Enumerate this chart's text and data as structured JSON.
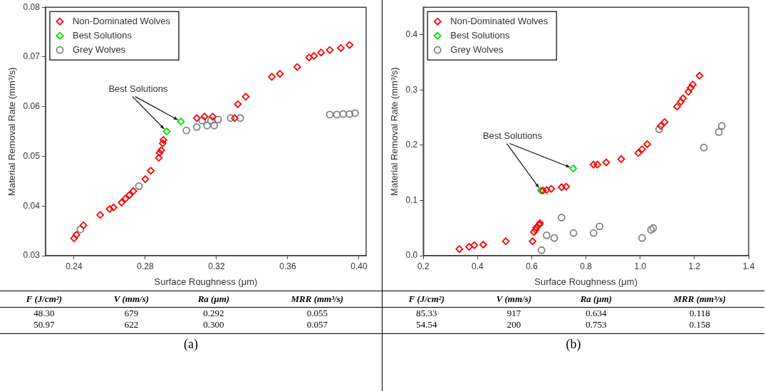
{
  "chart_data": [
    {
      "type": "scatter",
      "xlabel": "Surface Roughness (μm)",
      "ylabel": "Material Removal Rate (mm³/s)",
      "xlim": [
        0.224,
        0.404
      ],
      "ylim": [
        0.03,
        0.08
      ],
      "xticks": [
        0.24,
        0.28,
        0.32,
        0.36,
        {
          "value": 0.4,
          "label": "0.40"
        }
      ],
      "yticks": [
        0.03,
        0.04,
        0.05,
        0.06,
        0.07,
        0.08
      ],
      "grid": false,
      "legend": "top left",
      "series": [
        {
          "name": "Non-Dominated Wolves",
          "color": "#ff0000",
          "marker": "diamond",
          "x": [
            0.24,
            0.2413,
            0.2453,
            0.2547,
            0.26,
            0.2622,
            0.2667,
            0.2689,
            0.2711,
            0.2733,
            0.28,
            0.2831,
            0.2876,
            0.288,
            0.2889,
            0.2898,
            0.2902,
            0.3089,
            0.3133,
            0.3178,
            0.3302,
            0.332,
            0.3364,
            0.3511,
            0.3556,
            0.3653,
            0.372,
            0.3747,
            0.3787,
            0.3836,
            0.3898,
            0.3947
          ],
          "values": [
            0.0335,
            0.0342,
            0.0361,
            0.0382,
            0.0394,
            0.0397,
            0.0407,
            0.0415,
            0.0422,
            0.043,
            0.0454,
            0.0471,
            0.0497,
            0.0507,
            0.0512,
            0.0526,
            0.0533,
            0.0577,
            0.058,
            0.058,
            0.0577,
            0.0605,
            0.062,
            0.066,
            0.0666,
            0.068,
            0.0699,
            0.0702,
            0.0709,
            0.0714,
            0.0718,
            0.0724
          ]
        },
        {
          "name": "Best Solutions",
          "color": "#00dd00",
          "marker": "diamond",
          "x": [
            0.292,
            0.3
          ],
          "values": [
            0.055,
            0.057
          ]
        },
        {
          "name": "Grey Wolves",
          "color": "#808080",
          "marker": "circle",
          "x": [
            0.2436,
            0.2764,
            0.3031,
            0.3089,
            0.312,
            0.3147,
            0.3169,
            0.3187,
            0.3209,
            0.328,
            0.3333,
            0.3836,
            0.3876,
            0.3911,
            0.3947,
            0.3978
          ],
          "values": [
            0.0353,
            0.044,
            0.0552,
            0.0559,
            0.0572,
            0.0562,
            0.0572,
            0.0562,
            0.0574,
            0.0577,
            0.0577,
            0.0584,
            0.0584,
            0.0585,
            0.0585,
            0.0587
          ]
        }
      ],
      "annotations": [
        {
          "text": "Best Solutions",
          "x": 0.292,
          "y": 0.055
        },
        "F (J/cm²)",
        "V (mm/s)",
        "Ra (μm)",
        "MRR (mm³/s)",
        "48.30",
        "679",
        "0.292",
        "0.055",
        "50.97",
        "622",
        "0.300",
        "0.057",
        "(a)"
      ]
    },
    {
      "type": "scatter",
      "xlabel": "Surface Roughness (μm)",
      "ylabel": "Material Removal Rate (mm³/s)",
      "xlim": [
        0.2,
        1.4
      ],
      "ylim": [
        0,
        0.45
      ],
      "xticks": [
        0.2,
        0.4,
        0.6,
        0.8,
        {
          "value": 1,
          "label": "1.0"
        },
        1.2,
        1.4
      ],
      "yticks": [
        {
          "value": 0,
          "label": "0.0"
        },
        0.1,
        0.2,
        0.3,
        0.4
      ],
      "grid": false,
      "legend": "top left",
      "series": [
        {
          "name": "Non-Dominated Wolves",
          "color": "#ff0000",
          "marker": "diamond",
          "x": [
            0.333,
            0.369,
            0.388,
            0.421,
            0.504,
            0.603,
            0.608,
            0.614,
            0.617,
            0.628,
            0.63,
            0.641,
            0.655,
            0.672,
            0.71,
            0.727,
            0.828,
            0.842,
            0.875,
            0.93,
            0.993,
            1.007,
            1.026,
            1.076,
            1.09,
            1.136,
            1.15,
            1.158,
            1.178,
            1.186,
            1.194,
            1.219
          ],
          "values": [
            0.012,
            0.016,
            0.019,
            0.02,
            0.026,
            0.026,
            0.043,
            0.047,
            0.051,
            0.056,
            0.059,
            0.118,
            0.119,
            0.121,
            0.124,
            0.125,
            0.165,
            0.165,
            0.169,
            0.175,
            0.186,
            0.193,
            0.202,
            0.235,
            0.242,
            0.27,
            0.279,
            0.285,
            0.297,
            0.304,
            0.31,
            0.326
          ]
        },
        {
          "name": "Best Solutions",
          "color": "#00dd00",
          "marker": "diamond",
          "x": [
            0.634,
            0.753
          ],
          "values": [
            0.118,
            0.158
          ]
        },
        {
          "name": "Grey Wolves",
          "color": "#808080",
          "marker": "circle",
          "x": [
            0.636,
            0.655,
            0.683,
            0.71,
            0.754,
            0.828,
            0.85,
            1.007,
            1.04,
            1.048,
            1.07,
            1.235,
            1.29,
            1.301
          ],
          "values": [
            0.01,
            0.037,
            0.032,
            0.069,
            0.041,
            0.041,
            0.053,
            0.032,
            0.047,
            0.05,
            0.229,
            0.196,
            0.224,
            0.235
          ]
        }
      ],
      "annotations": [
        {
          "text": "Best Solutions",
          "x": 0.634,
          "y": 0.118
        },
        "F (J/cm²)",
        "V (mm/s)",
        "Ra (μm)",
        "MRR (mm³/s)",
        "85.33",
        "917",
        "0.634",
        "0.118",
        "54.54",
        "200",
        "0.753",
        "0.158",
        "(b)"
      ]
    }
  ]
}
